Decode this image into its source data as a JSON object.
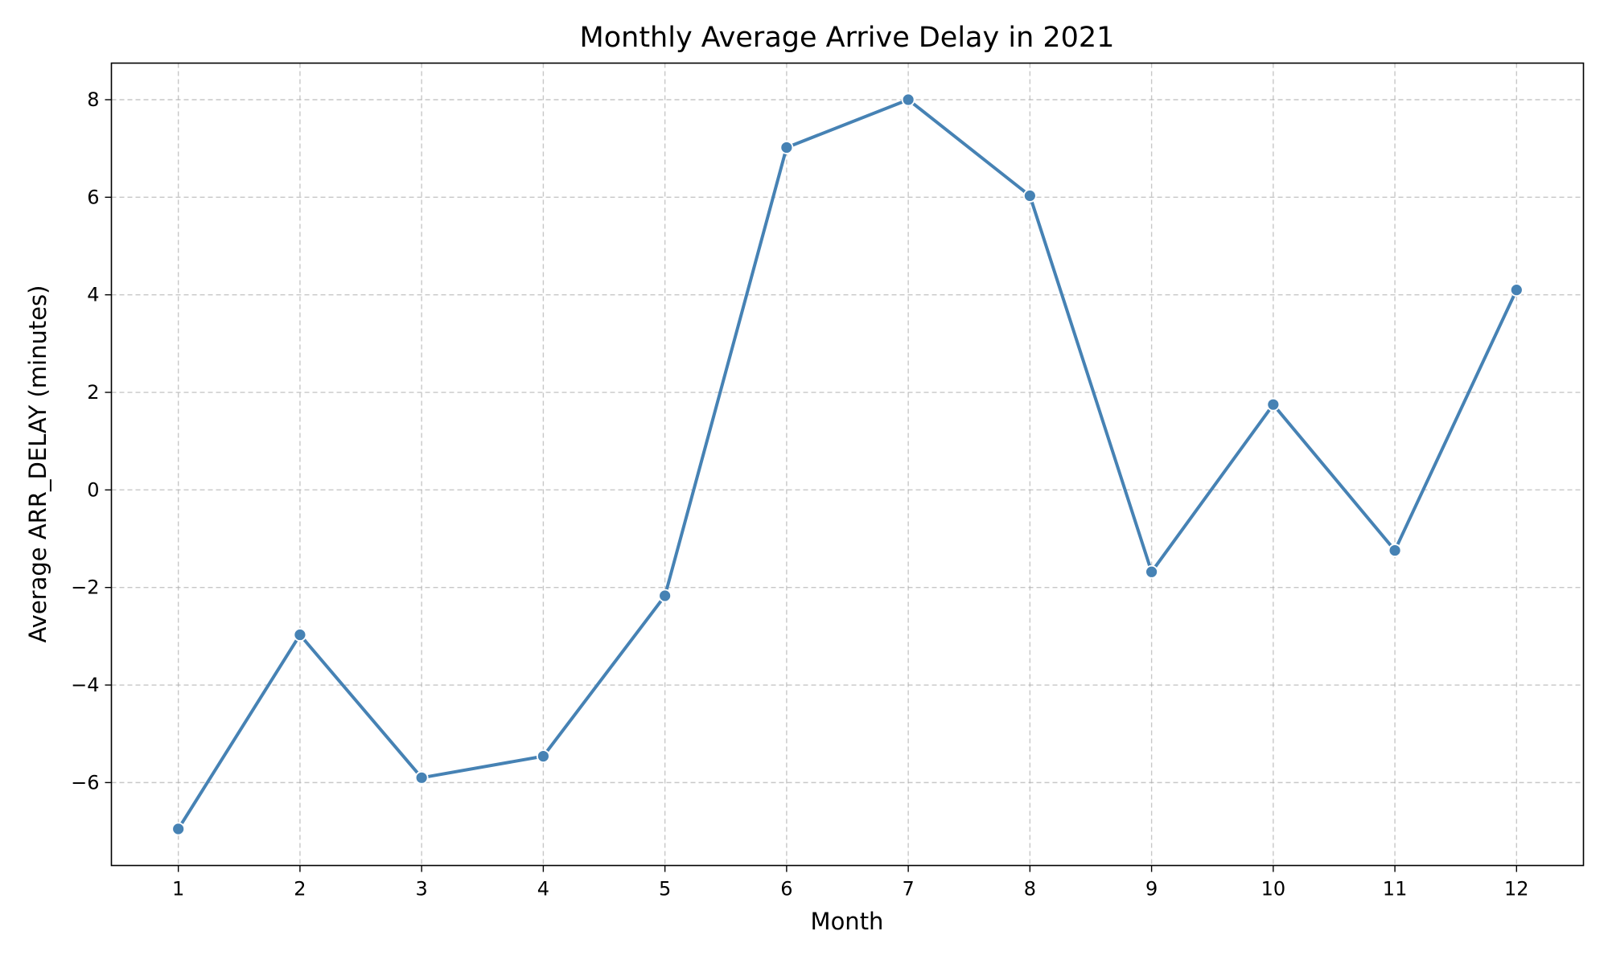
{
  "chart_data": {
    "type": "line",
    "title": "Monthly Average Arrive Delay in 2021",
    "xlabel": "Month",
    "ylabel": "Average ARR_DELAY (minutes)",
    "x": [
      1,
      2,
      3,
      4,
      5,
      6,
      7,
      8,
      9,
      10,
      11,
      12
    ],
    "series": [
      {
        "values": [
          -6.95,
          -2.97,
          -5.9,
          -5.46,
          -2.17,
          7.02,
          8.0,
          6.03,
          -1.68,
          1.75,
          -1.24,
          4.1
        ],
        "color": "#4682b4",
        "marker": "circle"
      }
    ],
    "xlim": [
      0.45,
      12.55
    ],
    "ylim": [
      -7.7,
      8.75
    ],
    "x_ticks": [
      "1",
      "2",
      "3",
      "4",
      "5",
      "6",
      "7",
      "8",
      "9",
      "10",
      "11",
      "12"
    ],
    "y_ticks": [
      -6,
      -4,
      -2,
      0,
      2,
      4,
      6,
      8
    ],
    "y_tick_labels": [
      "−6",
      "−4",
      "−2",
      "0",
      "2",
      "4",
      "6",
      "8"
    ],
    "grid": true,
    "grid_style": "dashed"
  }
}
